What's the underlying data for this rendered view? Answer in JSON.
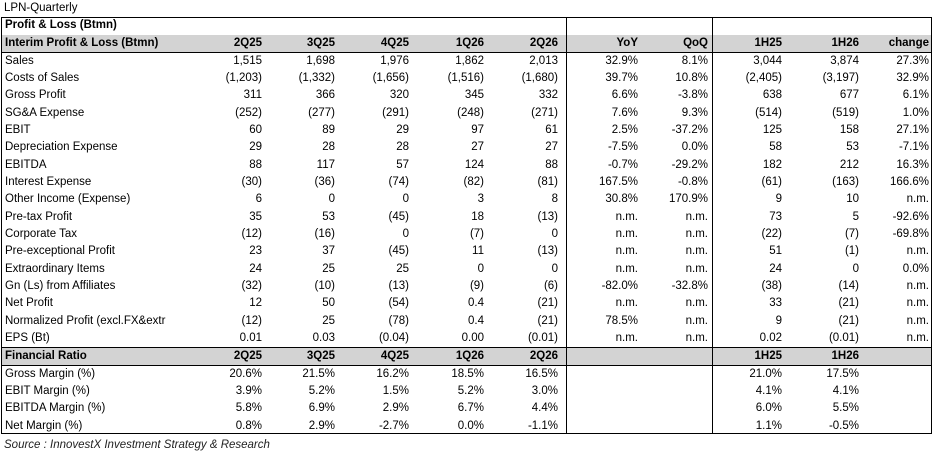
{
  "title": "LPN-Quarterly",
  "source": "Source : InnovestX Investment Strategy & Research",
  "pl_section": {
    "title": "Profit & Loss (Btmn)",
    "subtitle": "Interim Profit & Loss (Btmn)",
    "headers": [
      "2Q25",
      "3Q25",
      "4Q25",
      "1Q26",
      "2Q26",
      "YoY",
      "QoQ",
      "1H25",
      "1H26",
      "change"
    ],
    "rows": [
      {
        "label": "Sales",
        "values": [
          "1,515",
          "1,698",
          "1,976",
          "1,862",
          "2,013",
          "32.9%",
          "8.1%",
          "3,044",
          "3,874",
          "27.3%"
        ]
      },
      {
        "label": "Costs of Sales",
        "values": [
          "(1,203)",
          "(1,332)",
          "(1,656)",
          "(1,516)",
          "(1,680)",
          "39.7%",
          "10.8%",
          "(2,405)",
          "(3,197)",
          "32.9%"
        ]
      },
      {
        "label": "Gross Profit",
        "values": [
          "311",
          "366",
          "320",
          "345",
          "332",
          "6.6%",
          "-3.8%",
          "638",
          "677",
          "6.1%"
        ]
      },
      {
        "label": "SG&A Expense",
        "values": [
          "(252)",
          "(277)",
          "(291)",
          "(248)",
          "(271)",
          "7.6%",
          "9.3%",
          "(514)",
          "(519)",
          "1.0%"
        ]
      },
      {
        "label": "EBIT",
        "values": [
          "60",
          "89",
          "29",
          "97",
          "61",
          "2.5%",
          "-37.2%",
          "125",
          "158",
          "27.1%"
        ]
      },
      {
        "label": "Depreciation Expense",
        "values": [
          "29",
          "28",
          "28",
          "27",
          "27",
          "-7.5%",
          "0.0%",
          "58",
          "53",
          "-7.1%"
        ]
      },
      {
        "label": "EBITDA",
        "values": [
          "88",
          "117",
          "57",
          "124",
          "88",
          "-0.7%",
          "-29.2%",
          "182",
          "212",
          "16.3%"
        ]
      },
      {
        "label": "Interest Expense",
        "values": [
          "(30)",
          "(36)",
          "(74)",
          "(82)",
          "(81)",
          "167.5%",
          "-0.8%",
          "(61)",
          "(163)",
          "166.6%"
        ]
      },
      {
        "label": "Other Income (Expense)",
        "values": [
          "6",
          "0",
          "0",
          "3",
          "8",
          "30.8%",
          "170.9%",
          "9",
          "10",
          "n.m."
        ]
      },
      {
        "label": "Pre-tax Profit",
        "values": [
          "35",
          "53",
          "(45)",
          "18",
          "(13)",
          "n.m.",
          "n.m.",
          "73",
          "5",
          "-92.6%"
        ]
      },
      {
        "label": "Corporate Tax",
        "values": [
          "(12)",
          "(16)",
          "0",
          "(7)",
          "0",
          "n.m.",
          "n.m.",
          "(22)",
          "(7)",
          "-69.8%"
        ]
      },
      {
        "label": "Pre-exceptional Profit",
        "values": [
          "23",
          "37",
          "(45)",
          "11",
          "(13)",
          "n.m.",
          "n.m.",
          "51",
          "(1)",
          "n.m."
        ]
      },
      {
        "label": "Extraordinary Items",
        "values": [
          "24",
          "25",
          "25",
          "0",
          "0",
          "n.m.",
          "n.m.",
          "24",
          "0",
          "0.0%"
        ]
      },
      {
        "label": "Gn (Ls) from Affiliates",
        "values": [
          "(32)",
          "(10)",
          "(13)",
          "(9)",
          "(6)",
          "-82.0%",
          "-32.8%",
          "(38)",
          "(14)",
          "n.m."
        ]
      },
      {
        "label": "Net Profit",
        "values": [
          "12",
          "50",
          "(54)",
          "0.4",
          "(21)",
          "n.m.",
          "n.m.",
          "33",
          "(21)",
          "n.m."
        ]
      },
      {
        "label": "Normalized Profit (excl.FX&extr",
        "values": [
          "(12)",
          "25",
          "(78)",
          "0.4",
          "(21)",
          "78.5%",
          "n.m.",
          "9",
          "(21)",
          "n.m."
        ]
      },
      {
        "label": "EPS (Bt)",
        "values": [
          "0.01",
          "0.03",
          "(0.04)",
          "0.00",
          "(0.01)",
          "n.m.",
          "n.m.",
          "0.02",
          "(0.01)",
          "n.m."
        ]
      }
    ]
  },
  "ratio_section": {
    "title": "Financial Ratio",
    "headers": [
      "2Q25",
      "3Q25",
      "4Q25",
      "1Q26",
      "2Q26",
      "",
      "",
      "1H25",
      "1H26",
      ""
    ],
    "rows": [
      {
        "label": "Gross Margin (%)",
        "values": [
          "20.6%",
          "21.5%",
          "16.2%",
          "18.5%",
          "16.5%",
          "",
          "",
          "21.0%",
          "17.5%",
          ""
        ]
      },
      {
        "label": "EBIT Margin (%)",
        "values": [
          "3.9%",
          "5.2%",
          "1.5%",
          "5.2%",
          "3.0%",
          "",
          "",
          "4.1%",
          "4.1%",
          ""
        ]
      },
      {
        "label": "EBITDA Margin (%)",
        "values": [
          "5.8%",
          "6.9%",
          "2.9%",
          "6.7%",
          "4.4%",
          "",
          "",
          "6.0%",
          "5.5%",
          ""
        ]
      },
      {
        "label": "Net Margin (%)",
        "values": [
          "0.8%",
          "2.9%",
          "-2.7%",
          "0.0%",
          "-1.1%",
          "",
          "",
          "1.1%",
          "-0.5%",
          ""
        ]
      }
    ]
  }
}
